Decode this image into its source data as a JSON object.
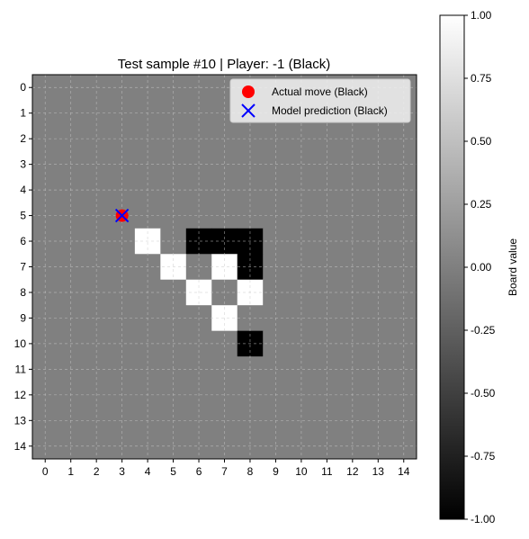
{
  "chart_data": [
    {
      "type": "heatmap",
      "title": "Test sample #10 | Player: -1 (Black)",
      "x_ticks": [
        "0",
        "1",
        "2",
        "3",
        "4",
        "5",
        "6",
        "7",
        "8",
        "9",
        "10",
        "11",
        "12",
        "13",
        "14"
      ],
      "y_ticks": [
        "0",
        "1",
        "2",
        "3",
        "4",
        "5",
        "6",
        "7",
        "8",
        "9",
        "10",
        "11",
        "12",
        "13",
        "14"
      ],
      "grid": true,
      "legend_position": "top-right",
      "value_range": [
        -1,
        1
      ],
      "board": [
        [
          0,
          0,
          0,
          0,
          0,
          0,
          0,
          0,
          0,
          0,
          0,
          0,
          0,
          0,
          0
        ],
        [
          0,
          0,
          0,
          0,
          0,
          0,
          0,
          0,
          0,
          0,
          0,
          0,
          0,
          0,
          0
        ],
        [
          0,
          0,
          0,
          0,
          0,
          0,
          0,
          0,
          0,
          0,
          0,
          0,
          0,
          0,
          0
        ],
        [
          0,
          0,
          0,
          0,
          0,
          0,
          0,
          0,
          0,
          0,
          0,
          0,
          0,
          0,
          0
        ],
        [
          0,
          0,
          0,
          0,
          0,
          0,
          0,
          0,
          0,
          0,
          0,
          0,
          0,
          0,
          0
        ],
        [
          0,
          0,
          0,
          0,
          0,
          0,
          0,
          0,
          0,
          0,
          0,
          0,
          0,
          0,
          0
        ],
        [
          0,
          0,
          0,
          0,
          1,
          0,
          -1,
          -1,
          -1,
          0,
          0,
          0,
          0,
          0,
          0
        ],
        [
          0,
          0,
          0,
          0,
          0,
          1,
          0,
          1,
          -1,
          0,
          0,
          0,
          0,
          0,
          0
        ],
        [
          0,
          0,
          0,
          0,
          0,
          0,
          1,
          0,
          1,
          0,
          0,
          0,
          0,
          0,
          0
        ],
        [
          0,
          0,
          0,
          0,
          0,
          0,
          0,
          1,
          0,
          0,
          0,
          0,
          0,
          0,
          0
        ],
        [
          0,
          0,
          0,
          0,
          0,
          0,
          0,
          0,
          -1,
          0,
          0,
          0,
          0,
          0,
          0
        ],
        [
          0,
          0,
          0,
          0,
          0,
          0,
          0,
          0,
          0,
          0,
          0,
          0,
          0,
          0,
          0
        ],
        [
          0,
          0,
          0,
          0,
          0,
          0,
          0,
          0,
          0,
          0,
          0,
          0,
          0,
          0,
          0
        ],
        [
          0,
          0,
          0,
          0,
          0,
          0,
          0,
          0,
          0,
          0,
          0,
          0,
          0,
          0,
          0
        ],
        [
          0,
          0,
          0,
          0,
          0,
          0,
          0,
          0,
          0,
          0,
          0,
          0,
          0,
          0,
          0
        ]
      ],
      "markers": [
        {
          "label": "Actual move (Black)",
          "row": 5,
          "col": 3,
          "marker": "circle",
          "color": "#ff0000"
        },
        {
          "label": "Model prediction (Black)",
          "row": 5,
          "col": 3,
          "marker": "x",
          "color": "#0000ff"
        }
      ],
      "colorbar": {
        "label": "Board value",
        "min": -1,
        "max": 1,
        "ticks": [
          "1.00",
          "0.75",
          "0.50",
          "0.25",
          "0.00",
          "-0.25",
          "-0.50",
          "-0.75",
          "-1.00"
        ],
        "tick_values": [
          1,
          0.75,
          0.5,
          0.25,
          0,
          -0.25,
          -0.5,
          -0.75,
          -1
        ]
      }
    }
  ]
}
